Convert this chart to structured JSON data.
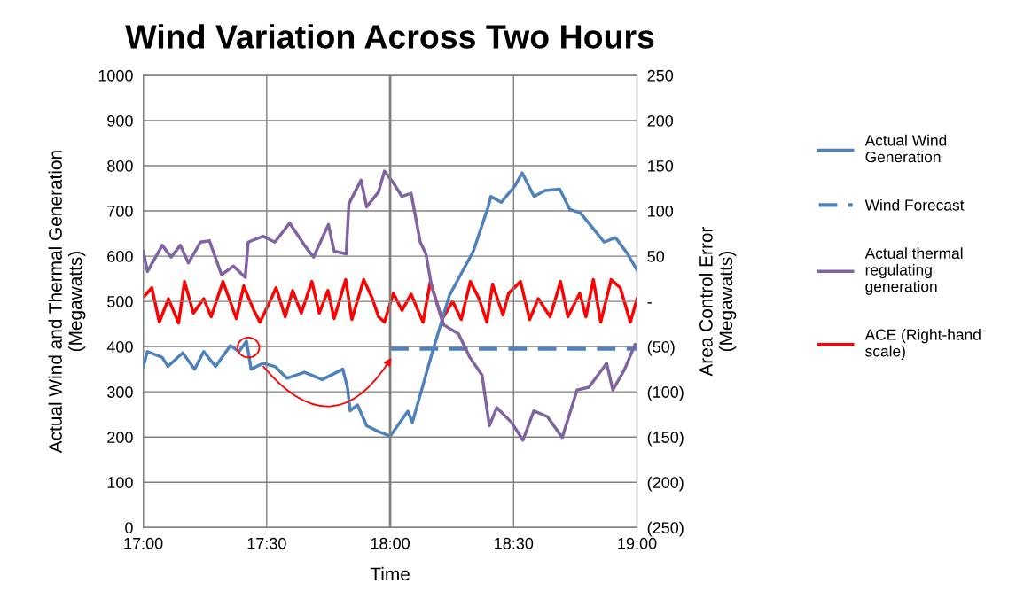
{
  "chart_data": {
    "type": "line",
    "title": "Wind Variation Across Two Hours",
    "xlabel": "Time",
    "ylabel": "Actual Wind and Thermal Generation\n(Megawatts)",
    "y2label": "Area Control Error\n(Megawatts)",
    "xlim": [
      17,
      19
    ],
    "xticks": [
      {
        "value": 17,
        "label": "17:00"
      },
      {
        "value": 17.5,
        "label": "17:30"
      },
      {
        "value": 18,
        "label": "18:00"
      },
      {
        "value": 18.5,
        "label": "18:30"
      },
      {
        "value": 19,
        "label": "19:00"
      }
    ],
    "ylim": [
      0,
      1000
    ],
    "yticks": [
      0,
      100,
      200,
      300,
      400,
      500,
      600,
      700,
      800,
      900,
      1000
    ],
    "y2lim": [
      -250,
      250
    ],
    "y2ticks": [
      {
        "value": -250,
        "label": "(250)"
      },
      {
        "value": -200,
        "label": "(200)"
      },
      {
        "value": -150,
        "label": "(150)"
      },
      {
        "value": -100,
        "label": "(100)"
      },
      {
        "value": -50,
        "label": "(50)"
      },
      {
        "value": 0,
        "label": "-"
      },
      {
        "value": 50,
        "label": "50"
      },
      {
        "value": 100,
        "label": "100"
      },
      {
        "value": 150,
        "label": "150"
      },
      {
        "value": 200,
        "label": "200"
      },
      {
        "value": 250,
        "label": "250"
      }
    ],
    "grid": true,
    "legend": "right",
    "marker": "none",
    "ref_lines": [
      {
        "axis": "x",
        "value": 18,
        "color": "#808080",
        "line_style": "solid"
      }
    ],
    "series": [
      {
        "name": "Actual Wind\nGeneration",
        "color": "#4f81bd",
        "line_style": "solid",
        "x": [
          17.0,
          17.017,
          17.077,
          17.1,
          17.16,
          17.208,
          17.245,
          17.293,
          17.353,
          17.388,
          17.418,
          17.437,
          17.485,
          17.533,
          17.582,
          17.653,
          17.725,
          17.808,
          17.827,
          17.838,
          17.868,
          17.905,
          17.953,
          18.0,
          18.072,
          18.09,
          18.168,
          18.24,
          18.337,
          18.397,
          18.408,
          18.45,
          18.505,
          18.535,
          18.583,
          18.627,
          18.687,
          18.728,
          18.77,
          18.818,
          18.867,
          18.913,
          18.962,
          19.0
        ],
        "values": [
          356,
          389,
          376,
          356,
          386,
          350,
          389,
          356,
          402,
          389,
          412,
          350,
          363,
          356,
          330,
          343,
          327,
          350,
          310,
          258,
          271,
          225,
          212,
          202,
          257,
          232,
          382,
          513,
          611,
          709,
          732,
          719,
          755,
          784,
          732,
          745,
          748,
          703,
          696,
          664,
          631,
          641,
          605,
          569
        ]
      },
      {
        "name": "Wind Forecast",
        "color": "#4f81bd",
        "line_style": "dashed",
        "x": [
          18.0,
          19.0
        ],
        "values": [
          395,
          395
        ]
      },
      {
        "name": "Actual thermal\nregulating\ngeneration",
        "color": "#8064a2",
        "line_style": "solid",
        "x": [
          17.0,
          17.017,
          17.077,
          17.113,
          17.15,
          17.183,
          17.232,
          17.268,
          17.317,
          17.365,
          17.413,
          17.425,
          17.485,
          17.533,
          17.593,
          17.653,
          17.69,
          17.75,
          17.773,
          17.822,
          17.833,
          17.882,
          17.905,
          17.953,
          17.977,
          18.013,
          18.048,
          18.085,
          18.122,
          18.145,
          18.168,
          18.217,
          18.277,
          18.323,
          18.372,
          18.402,
          18.432,
          18.492,
          18.538,
          18.582,
          18.637,
          18.697,
          18.757,
          18.805,
          18.877,
          18.902,
          18.95,
          18.992,
          19.0
        ],
        "values": [
          611,
          566,
          624,
          598,
          624,
          585,
          631,
          634,
          559,
          578,
          553,
          631,
          644,
          631,
          673,
          624,
          598,
          670,
          611,
          605,
          716,
          768,
          709,
          742,
          788,
          762,
          732,
          739,
          631,
          605,
          533,
          448,
          428,
          376,
          337,
          225,
          265,
          232,
          193,
          258,
          245,
          199,
          304,
          310,
          363,
          304,
          350,
          405,
          402
        ]
      },
      {
        "name": "ACE (Right-hand\nscale)",
        "color": "#ff0000",
        "line_style": "solid",
        "axis": "y2",
        "x": [
          17.005,
          17.035,
          17.065,
          17.102,
          17.143,
          17.167,
          17.203,
          17.245,
          17.275,
          17.323,
          17.377,
          17.407,
          17.448,
          17.473,
          17.508,
          17.538,
          17.575,
          17.605,
          17.64,
          17.683,
          17.713,
          17.748,
          17.773,
          17.82,
          17.845,
          17.893,
          17.928,
          17.953,
          17.977,
          18.013,
          18.048,
          18.085,
          18.133,
          18.163,
          18.21,
          18.253,
          18.288,
          18.325,
          18.36,
          18.392,
          18.415,
          18.457,
          18.48,
          18.528,
          18.565,
          18.6,
          18.648,
          18.69,
          18.72,
          18.768,
          18.793,
          18.823,
          18.853,
          18.895,
          18.932,
          18.973,
          19.0
        ],
        "values": [
          6,
          15,
          -23,
          3,
          -24,
          22,
          -13,
          3,
          -17,
          22,
          -19,
          17,
          -10,
          -23,
          -3,
          15,
          -17,
          12,
          -13,
          22,
          -13,
          12,
          -19,
          24,
          -20,
          24,
          3,
          -17,
          -23,
          9,
          -10,
          8,
          -23,
          22,
          -20,
          0,
          -20,
          22,
          3,
          -23,
          19,
          -15,
          9,
          22,
          -20,
          3,
          -17,
          22,
          -17,
          9,
          -17,
          24,
          -23,
          24,
          15,
          -23,
          3
        ]
      }
    ]
  }
}
